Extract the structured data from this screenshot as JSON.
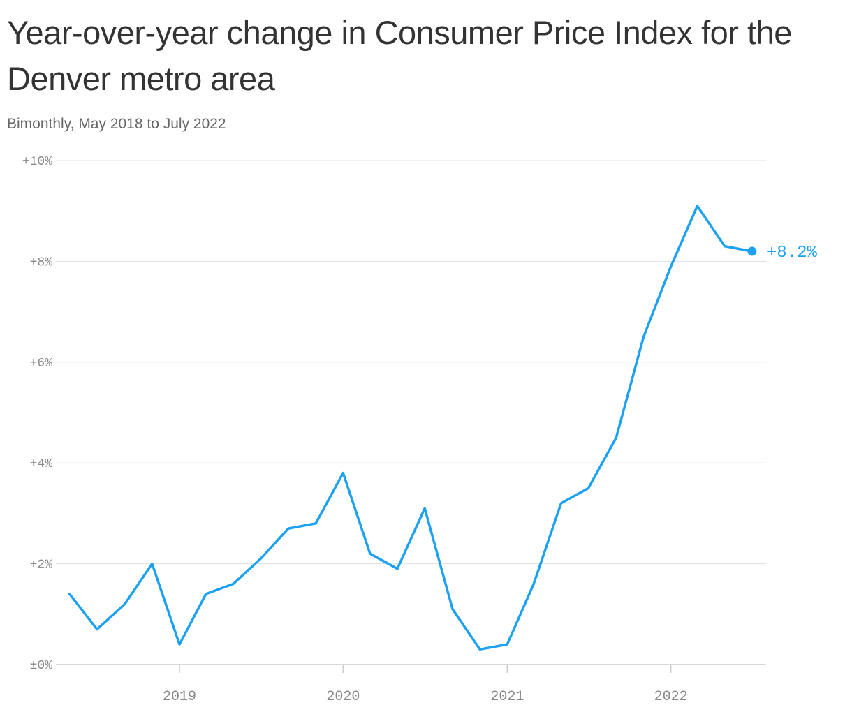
{
  "title": "Year-over-year change in Consumer Price Index for the Denver metro area",
  "subtitle": "Bimonthly, May 2018 to July 2022",
  "colors": {
    "line": "#1da1f2",
    "grid": "#e0e0e0",
    "axis": "#cccccc",
    "tick_text": "#888888"
  },
  "chart_data": {
    "type": "line",
    "title": "Year-over-year change in Consumer Price Index for the Denver metro area",
    "subtitle": "Bimonthly, May 2018 to July 2022",
    "x": [
      "2018-05",
      "2018-07",
      "2018-09",
      "2018-11",
      "2019-01",
      "2019-03",
      "2019-05",
      "2019-07",
      "2019-09",
      "2019-11",
      "2020-01",
      "2020-03",
      "2020-05",
      "2020-07",
      "2020-09",
      "2020-11",
      "2021-01",
      "2021-03",
      "2021-05",
      "2021-07",
      "2021-09",
      "2021-11",
      "2022-01",
      "2022-03",
      "2022-05",
      "2022-07"
    ],
    "series": [
      {
        "values": [
          1.4,
          0.7,
          1.2,
          2.0,
          0.4,
          1.4,
          1.6,
          2.1,
          2.7,
          2.8,
          3.8,
          2.2,
          1.9,
          3.1,
          1.1,
          0.3,
          0.4,
          1.6,
          3.2,
          3.5,
          4.5,
          6.5,
          7.9,
          9.1,
          8.3,
          8.2
        ]
      }
    ],
    "end_label": "+8.2%",
    "y_ticks": [
      {
        "value": 0,
        "label": "±0%"
      },
      {
        "value": 2,
        "label": "+2%"
      },
      {
        "value": 4,
        "label": "+4%"
      },
      {
        "value": 6,
        "label": "+6%"
      },
      {
        "value": 8,
        "label": "+8%"
      },
      {
        "value": 10,
        "label": "+10%"
      }
    ],
    "x_ticks": [
      {
        "value": "2019-01",
        "label": "2019"
      },
      {
        "value": "2020-01",
        "label": "2020"
      },
      {
        "value": "2021-01",
        "label": "2021"
      },
      {
        "value": "2022-01",
        "label": "2022"
      }
    ],
    "ylim": [
      0,
      10
    ],
    "grid": true
  }
}
